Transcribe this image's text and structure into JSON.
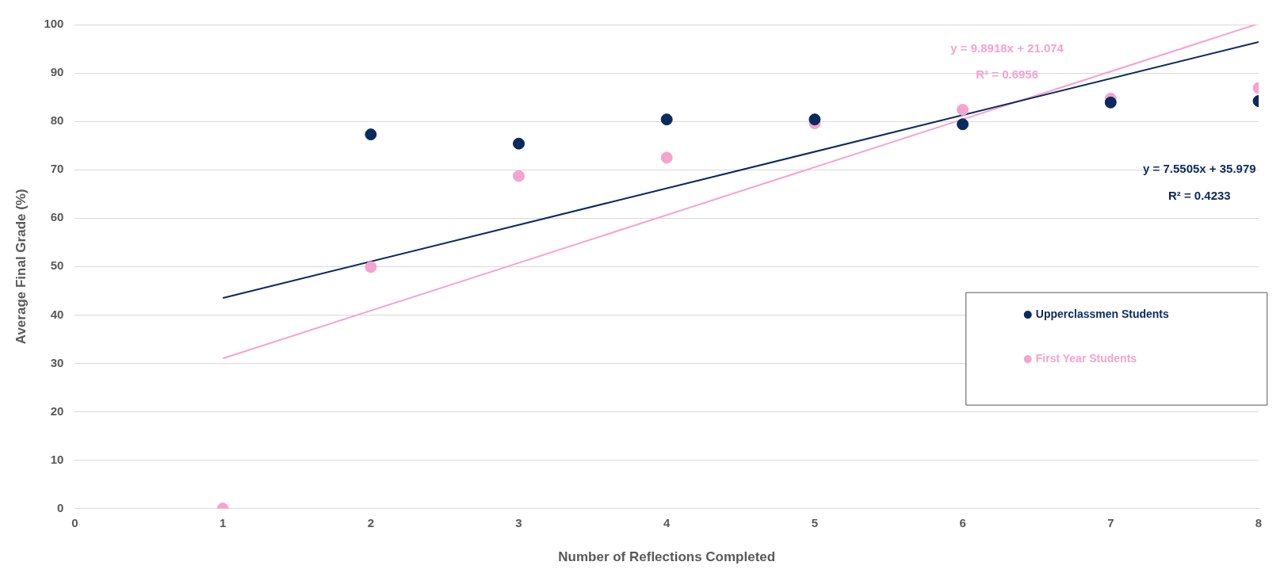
{
  "chart_data": {
    "type": "scatter",
    "xlabel": "Number of Reflections Completed",
    "ylabel": "Average Final Grade (%)",
    "xlim": [
      0,
      8
    ],
    "xticks": [
      0,
      1,
      2,
      3,
      4,
      5,
      6,
      7,
      8
    ],
    "ylim": [
      0,
      100
    ],
    "yticks": [
      0,
      10,
      20,
      30,
      40,
      50,
      60,
      70,
      80,
      90,
      100
    ],
    "grid": "y",
    "legend": "right",
    "series": [
      {
        "name": "Upperclassmen Students",
        "color": "#0b2a5e",
        "marker": "circle",
        "x": [
          2,
          3,
          4,
          5,
          6,
          7,
          8
        ],
        "values": [
          77.3,
          75.4,
          80.4,
          80.4,
          79.4,
          83.9,
          84.2
        ]
      },
      {
        "name": "First Year Students",
        "color": "#f5a3cf",
        "marker": "circle",
        "x": [
          1,
          2,
          3,
          4,
          5,
          6,
          7,
          8
        ],
        "values": [
          0,
          49.9,
          68.7,
          72.5,
          79.6,
          82.4,
          84.7,
          86.9
        ]
      },
      {
        "type": "line",
        "color": "#0b2a5e",
        "line_style": "solid",
        "marker": "none",
        "x": [
          1,
          8
        ],
        "values": [
          43.5,
          96.4
        ]
      },
      {
        "type": "line",
        "color": "#f5a3cf",
        "line_style": "solid",
        "marker": "none",
        "x": [
          1,
          7.98
        ],
        "values": [
          31,
          100
        ]
      }
    ],
    "annotations": [
      "y = 9.8918x + 21.074",
      "R² = 0.6956",
      "y = 7.5505x + 35.979",
      "R² = 0.4233"
    ]
  }
}
